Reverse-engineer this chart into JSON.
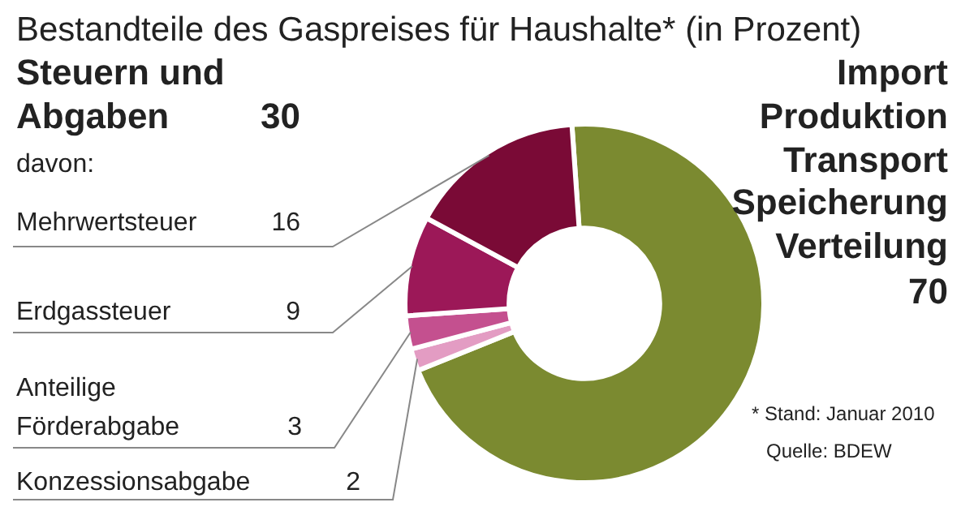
{
  "chart_data": {
    "type": "donut",
    "title": "Bestandteile des Gaspreises für Haushalte* (in Prozent)",
    "categories": [
      "Import Produktion Transport Speicherung Verteilung",
      "Konzessionsabgabe",
      "Anteilige Förderabgabe",
      "Erdgassteuer",
      "Mehrwertsteuer"
    ],
    "values": [
      70,
      2,
      3,
      9,
      16
    ],
    "colors": [
      "#7b8a30",
      "#e39cc3",
      "#c4508f",
      "#9c1858",
      "#7a0a36"
    ],
    "data_labels": true,
    "legend": false,
    "annotations": [
      "Steuern und Abgaben",
      "30",
      "davon:",
      "* Stand: Januar 2010",
      "Quelle: BDEW"
    ]
  }
}
